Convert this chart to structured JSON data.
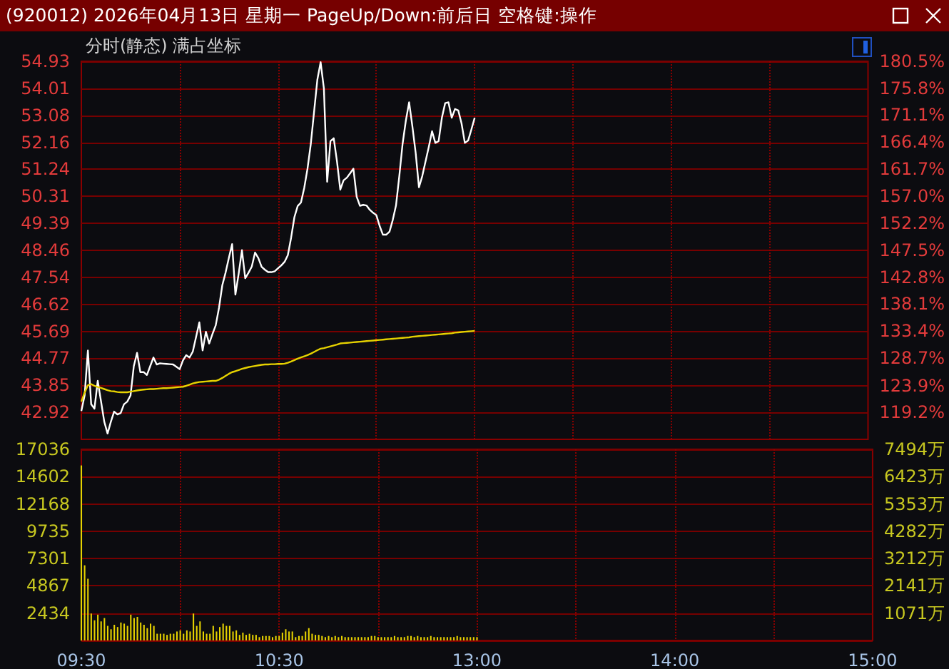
{
  "chart_data": [
    {
      "type": "line",
      "title": "(920012) 2026年04月13日 星期一 PageUp/Down:前后日 空格键:操作",
      "subtitle": "分时(静态) 满占坐标",
      "categories": [
        null,
        null,
        null,
        null,
        null,
        null,
        null,
        null,
        null,
        null,
        null,
        null,
        null,
        null,
        null,
        null,
        null,
        null,
        null,
        null,
        null,
        null,
        null,
        null,
        null,
        null,
        null,
        null,
        null,
        null,
        null,
        null,
        null,
        null,
        null,
        null,
        null,
        null,
        null,
        null,
        null,
        null,
        null,
        null,
        null,
        null,
        null,
        null,
        null,
        null,
        null,
        null,
        null,
        null,
        null,
        null,
        null,
        null,
        null,
        null,
        null,
        null,
        null,
        null,
        null,
        null,
        null,
        null,
        null,
        null,
        null,
        null,
        null,
        null,
        null,
        null,
        null,
        null,
        null,
        null,
        null,
        null,
        null,
        null,
        null,
        null,
        null,
        null,
        null,
        null,
        null,
        null,
        null,
        null,
        null,
        null,
        null,
        null,
        null,
        null,
        null,
        null,
        null,
        null,
        null,
        null,
        null,
        null,
        null,
        null,
        null,
        null,
        null,
        null,
        null,
        null,
        null,
        null,
        null,
        null,
        null,
        null,
        null,
        null,
        null,
        null,
        null,
        null,
        null,
        null,
        null,
        null,
        null,
        null,
        null,
        null,
        null,
        null,
        null,
        null,
        null,
        null,
        null,
        null,
        null,
        null,
        null,
        null,
        null,
        null,
        null,
        null,
        null,
        null,
        null,
        null,
        null,
        null,
        null,
        null,
        null,
        null,
        null,
        null,
        null,
        null,
        null,
        null,
        null,
        null,
        null,
        null,
        null,
        null,
        null,
        null,
        null,
        null,
        null,
        null,
        null,
        null,
        null,
        null,
        null,
        null,
        null,
        null,
        null,
        null,
        null,
        null,
        null,
        null,
        null,
        null,
        null,
        null,
        null,
        null,
        null,
        null,
        null,
        null,
        null,
        null,
        null,
        null,
        null,
        null,
        null,
        null,
        null,
        null,
        null,
        null,
        null,
        null,
        null,
        null,
        null,
        null,
        null,
        null,
        null,
        null,
        null,
        null,
        null,
        null,
        null,
        null,
        null,
        null,
        null,
        null,
        null,
        null,
        null,
        null,
        null
      ],
      "ylim": [
        42.0,
        54.93
      ],
      "yticks": [
        42.92,
        43.85,
        44.77,
        45.69,
        46.62,
        47.54,
        48.46,
        49.39,
        50.31,
        51.24,
        52.16,
        53.08,
        54.01,
        54.93
      ],
      "y2lim": [
        114.5,
        180.5
      ],
      "y2ticks": [
        {
          "value": 119.2,
          "label": "119.2%"
        },
        {
          "value": 123.9,
          "label": "123.9%"
        },
        {
          "value": 128.7,
          "label": "128.7%"
        },
        {
          "value": 133.4,
          "label": "133.4%"
        },
        {
          "value": 138.1,
          "label": "138.1%"
        },
        {
          "value": 142.8,
          "label": "142.8%"
        },
        {
          "value": 147.5,
          "label": "147.5%"
        },
        {
          "value": 152.2,
          "label": "152.2%"
        },
        {
          "value": 157.0,
          "label": "157.0%"
        },
        {
          "value": 161.7,
          "label": "161.7%"
        },
        {
          "value": 166.4,
          "label": "166.4%"
        },
        {
          "value": 171.1,
          "label": "171.1%"
        },
        {
          "value": 175.8,
          "label": "175.8%"
        },
        {
          "value": 180.5,
          "label": "180.5%"
        }
      ],
      "grid": true,
      "series": [
        {
          "color": "#ffffff",
          "values": [
            42.97,
            43.5,
            45.04,
            43.2,
            43.05,
            44.0,
            43.3,
            42.6,
            42.2,
            42.6,
            42.95,
            42.85,
            42.9,
            43.2,
            43.29,
            43.5,
            44.5,
            44.96,
            44.3,
            44.3,
            44.2,
            44.5,
            44.8,
            44.56,
            44.6,
            44.59,
            44.58,
            44.57,
            44.56,
            44.48,
            44.4,
            44.7,
            44.88,
            44.8,
            45.0,
            45.5,
            46.0,
            45.04,
            45.68,
            45.28,
            45.6,
            45.9,
            46.5,
            47.27,
            47.7,
            48.2,
            48.68,
            46.95,
            47.67,
            48.47,
            47.51,
            47.7,
            47.91,
            48.39,
            48.2,
            47.9,
            47.8,
            47.72,
            47.72,
            47.75,
            47.85,
            47.95,
            48.07,
            48.3,
            48.9,
            49.6,
            49.98,
            50.1,
            50.6,
            51.26,
            52.1,
            53.2,
            54.3,
            54.9,
            54.0,
            50.81,
            52.2,
            52.3,
            51.5,
            50.54,
            50.86,
            50.95,
            51.1,
            51.26,
            50.3,
            49.99,
            50.02,
            50.0,
            49.85,
            49.75,
            49.67,
            49.3,
            49.0,
            49.0,
            49.1,
            49.5,
            50.0,
            51.0,
            52.1,
            52.9,
            53.53,
            52.7,
            51.8,
            50.62,
            51.0,
            51.5,
            52.0,
            52.54,
            52.14,
            52.2,
            53.0,
            53.5,
            53.53,
            53.0,
            53.3,
            53.25,
            52.8,
            52.14,
            52.22,
            52.6,
            53.0,
            null,
            null,
            null,
            null,
            null,
            null,
            null,
            null,
            null,
            null,
            null,
            null,
            null,
            null,
            null,
            null,
            null,
            null,
            null,
            null,
            null,
            null,
            null,
            null,
            null,
            null,
            null,
            null,
            null,
            null,
            null,
            null,
            null,
            null,
            null,
            null,
            null,
            null,
            null,
            null,
            null,
            null,
            null,
            null,
            null,
            null,
            null,
            null,
            null,
            null,
            null,
            null,
            null,
            null,
            null,
            null,
            null,
            null,
            null,
            null,
            null,
            null,
            null,
            null,
            null,
            null,
            null,
            null,
            null,
            null,
            null,
            null,
            null,
            null,
            null,
            null,
            null,
            null,
            null,
            null,
            null,
            null,
            null,
            null,
            null,
            null,
            null,
            null,
            null,
            null,
            null,
            null,
            null,
            null,
            null,
            null,
            null,
            null,
            null,
            null,
            null,
            null,
            null,
            null,
            null,
            null,
            null,
            null,
            null,
            null,
            null,
            null,
            null,
            null,
            null,
            null,
            null,
            null,
            null,
            null
          ]
        },
        {
          "color": "#e6d200",
          "values": [
            43.29,
            43.6,
            43.85,
            43.89,
            43.83,
            43.79,
            43.76,
            43.72,
            43.68,
            43.65,
            43.64,
            43.62,
            43.61,
            43.61,
            43.61,
            43.63,
            43.65,
            43.67,
            43.69,
            43.7,
            43.71,
            43.72,
            43.72,
            43.73,
            43.74,
            43.75,
            43.75,
            43.76,
            43.77,
            43.78,
            43.79,
            43.8,
            43.83,
            43.87,
            43.91,
            43.94,
            43.96,
            43.97,
            43.98,
            43.99,
            44.0,
            44.0,
            44.04,
            44.1,
            44.17,
            44.24,
            44.3,
            44.33,
            44.37,
            44.41,
            44.44,
            44.47,
            44.49,
            44.51,
            44.53,
            44.55,
            44.56,
            44.56,
            44.57,
            44.57,
            44.58,
            44.58,
            44.59,
            44.62,
            44.66,
            44.71,
            44.76,
            44.8,
            44.84,
            44.88,
            44.93,
            44.99,
            45.05,
            45.1,
            45.12,
            45.15,
            45.18,
            45.21,
            45.24,
            45.28,
            45.29,
            45.3,
            45.31,
            45.32,
            45.33,
            45.34,
            45.35,
            45.36,
            45.37,
            45.38,
            45.39,
            45.4,
            45.41,
            45.42,
            45.43,
            45.44,
            45.45,
            45.46,
            45.47,
            45.48,
            45.49,
            45.51,
            45.52,
            45.53,
            45.54,
            45.55,
            45.56,
            45.57,
            45.58,
            45.59,
            45.6,
            45.61,
            45.62,
            45.63,
            45.65,
            45.66,
            45.67,
            45.68,
            45.69,
            45.7,
            45.71,
            null,
            null,
            null,
            null,
            null,
            null,
            null,
            null,
            null,
            null,
            null,
            null,
            null,
            null,
            null,
            null,
            null,
            null,
            null,
            null,
            null,
            null,
            null,
            null,
            null,
            null,
            null,
            null,
            null,
            null,
            null,
            null,
            null,
            null,
            null,
            null,
            null,
            null,
            null,
            null,
            null,
            null,
            null,
            null,
            null,
            null,
            null,
            null,
            null,
            null,
            null,
            null,
            null,
            null,
            null,
            null,
            null,
            null,
            null,
            null,
            null,
            null,
            null,
            null,
            null,
            null,
            null,
            null,
            null,
            null,
            null,
            null,
            null,
            null,
            null,
            null,
            null,
            null,
            null,
            null,
            null,
            null,
            null,
            null,
            null,
            null,
            null,
            null,
            null,
            null,
            null,
            null,
            null,
            null,
            null,
            null,
            null,
            null,
            null,
            null,
            null,
            null,
            null,
            null,
            null,
            null,
            null,
            null,
            null,
            null,
            null,
            null,
            null,
            null,
            null,
            null,
            null,
            null,
            null,
            null
          ]
        }
      ]
    },
    {
      "type": "bar",
      "categories": [
        "09:30",
        null,
        null,
        null,
        null,
        null,
        null,
        null,
        null,
        null,
        null,
        null,
        null,
        null,
        null,
        null,
        null,
        null,
        null,
        null,
        null,
        null,
        null,
        null,
        null,
        null,
        null,
        null,
        null,
        null,
        null,
        null,
        null,
        null,
        null,
        null,
        null,
        null,
        null,
        null,
        null,
        null,
        null,
        null,
        null,
        null,
        null,
        null,
        null,
        null,
        null,
        null,
        null,
        null,
        null,
        null,
        null,
        null,
        null,
        null,
        "10:30",
        null,
        null,
        null,
        null,
        null,
        null,
        null,
        null,
        null,
        null,
        null,
        null,
        null,
        null,
        null,
        null,
        null,
        null,
        null,
        null,
        null,
        null,
        null,
        null,
        null,
        null,
        null,
        null,
        null,
        null,
        null,
        null,
        null,
        null,
        null,
        null,
        null,
        null,
        null,
        null,
        null,
        null,
        null,
        null,
        null,
        null,
        null,
        null,
        null,
        null,
        null,
        null,
        null,
        null,
        null,
        null,
        null,
        null,
        null,
        "13:00",
        null,
        null,
        null,
        null,
        null,
        null,
        null,
        null,
        null,
        null,
        null,
        null,
        null,
        null,
        null,
        null,
        null,
        null,
        null,
        null,
        null,
        null,
        null,
        null,
        null,
        null,
        null,
        null,
        null,
        null,
        null,
        null,
        null,
        null,
        null,
        null,
        null,
        null,
        null,
        null,
        null,
        null,
        null,
        null,
        null,
        null,
        null,
        null,
        null,
        null,
        null,
        null,
        null,
        null,
        null,
        null,
        null,
        null,
        null,
        "14:00",
        null,
        null,
        null,
        null,
        null,
        null,
        null,
        null,
        null,
        null,
        null,
        null,
        null,
        null,
        null,
        null,
        null,
        null,
        null,
        null,
        null,
        null,
        null,
        null,
        null,
        null,
        null,
        null,
        null,
        null,
        null,
        null,
        null,
        null,
        null,
        null,
        null,
        null,
        null,
        null,
        null,
        null,
        null,
        null,
        null,
        null,
        null,
        null,
        null,
        null,
        null,
        null,
        null,
        null,
        null,
        null,
        null,
        null,
        null,
        "15:00"
      ],
      "ylim": [
        0,
        17036
      ],
      "yticks": [
        {
          "value": 0,
          "label": null
        },
        2434,
        4867,
        7301,
        9735,
        12168,
        14602,
        17036
      ],
      "y2lim": [
        0,
        7494
      ],
      "y2ticks": [
        {
          "value": 1071,
          "label": "1071万"
        },
        {
          "value": 2141,
          "label": "2141万"
        },
        {
          "value": 3212,
          "label": "3212万"
        },
        {
          "value": 4282,
          "label": "4282万"
        },
        {
          "value": 5353,
          "label": "5353万"
        },
        {
          "value": 6423,
          "label": "6423万"
        },
        {
          "value": 7494,
          "label": "7494万"
        }
      ],
      "grid": true,
      "series": [
        {
          "color": "#e6d200",
          "values": [
            15600,
            6700,
            5500,
            2400,
            1800,
            2300,
            1700,
            2000,
            1300,
            1000,
            1400,
            1200,
            1600,
            1500,
            1300,
            2300,
            2000,
            2100,
            1600,
            1400,
            1100,
            1500,
            1300,
            600,
            600,
            600,
            500,
            600,
            600,
            800,
            900,
            600,
            900,
            800,
            2400,
            1300,
            1700,
            800,
            600,
            600,
            1300,
            800,
            1200,
            1500,
            1300,
            1300,
            800,
            900,
            500,
            700,
            500,
            600,
            500,
            500,
            300,
            400,
            400,
            400,
            300,
            400,
            400,
            700,
            1000,
            800,
            800,
            300,
            400,
            400,
            800,
            1100,
            600,
            500,
            500,
            400,
            300,
            400,
            300,
            400,
            300,
            400,
            300,
            300,
            300,
            300,
            300,
            300,
            300,
            300,
            400,
            400,
            300,
            300,
            300,
            300,
            300,
            400,
            300,
            300,
            300,
            400,
            400,
            300,
            400,
            300,
            300,
            300,
            400,
            300,
            300,
            300,
            300,
            300,
            300,
            300,
            400,
            300,
            300,
            300,
            300,
            300,
            300,
            null,
            null,
            null,
            null,
            null,
            null,
            null,
            null,
            null,
            null,
            null,
            null,
            null,
            null,
            null,
            null,
            null,
            null,
            null,
            null,
            null,
            null,
            null,
            null,
            null,
            null,
            null,
            null,
            null,
            null,
            null,
            null,
            null,
            null,
            null,
            null,
            null,
            null,
            null,
            null,
            null,
            null,
            null,
            null,
            null,
            null,
            null,
            null,
            null,
            null,
            null,
            null,
            null,
            null,
            null,
            null,
            null,
            null,
            null,
            null,
            null,
            null,
            null,
            null,
            null,
            null,
            null,
            null,
            null,
            null,
            null,
            null,
            null,
            null,
            null,
            null,
            null,
            null,
            null,
            null,
            null,
            null,
            null,
            null,
            null,
            null,
            null,
            null,
            null,
            null,
            null,
            null,
            null,
            null,
            null,
            null,
            null,
            null,
            null,
            null,
            null,
            null,
            null,
            null,
            null,
            null,
            null,
            null,
            null,
            null,
            null,
            null,
            null,
            null,
            null,
            null,
            null,
            null,
            null,
            null
          ]
        }
      ]
    }
  ]
}
